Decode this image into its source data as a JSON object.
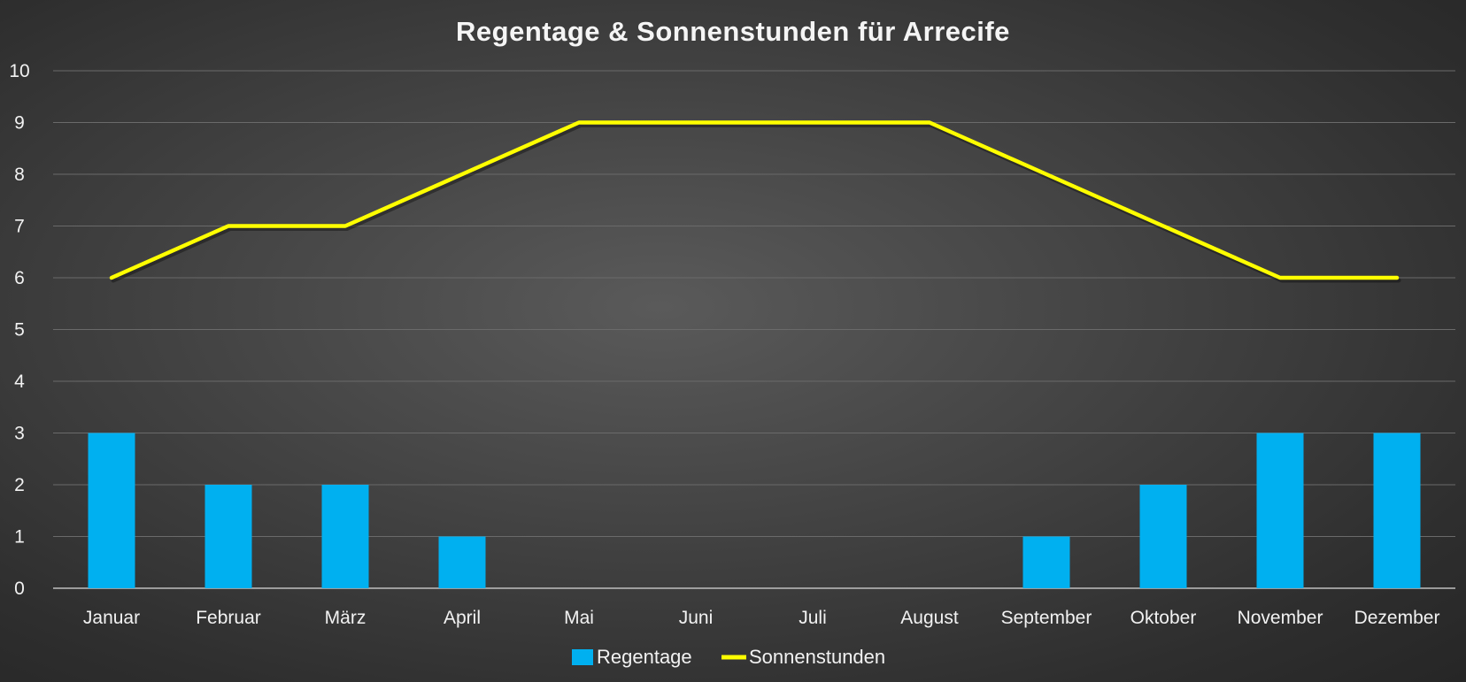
{
  "chart_data": {
    "type": "bar",
    "title": "Regentage & Sonnenstunden für Arrecife",
    "categories": [
      "Januar",
      "Februar",
      "März",
      "April",
      "Mai",
      "Juni",
      "Juli",
      "August",
      "September",
      "Oktober",
      "November",
      "Dezember"
    ],
    "series": [
      {
        "name": "Regentage",
        "type": "bar",
        "color": "#00b0f0",
        "values": [
          3,
          2,
          2,
          1,
          0,
          0,
          0,
          0,
          1,
          2,
          3,
          3
        ]
      },
      {
        "name": "Sonnenstunden",
        "type": "line",
        "color": "#ffff00",
        "values": [
          6,
          7,
          7,
          8,
          9,
          9,
          9,
          9,
          8,
          7,
          6,
          6
        ]
      }
    ],
    "ylim": [
      0,
      10
    ],
    "yticks": [
      0,
      1,
      2,
      3,
      4,
      5,
      6,
      7,
      8,
      9,
      10
    ],
    "xlabel": "",
    "ylabel": "",
    "grid": true,
    "legend_position": "bottom"
  }
}
